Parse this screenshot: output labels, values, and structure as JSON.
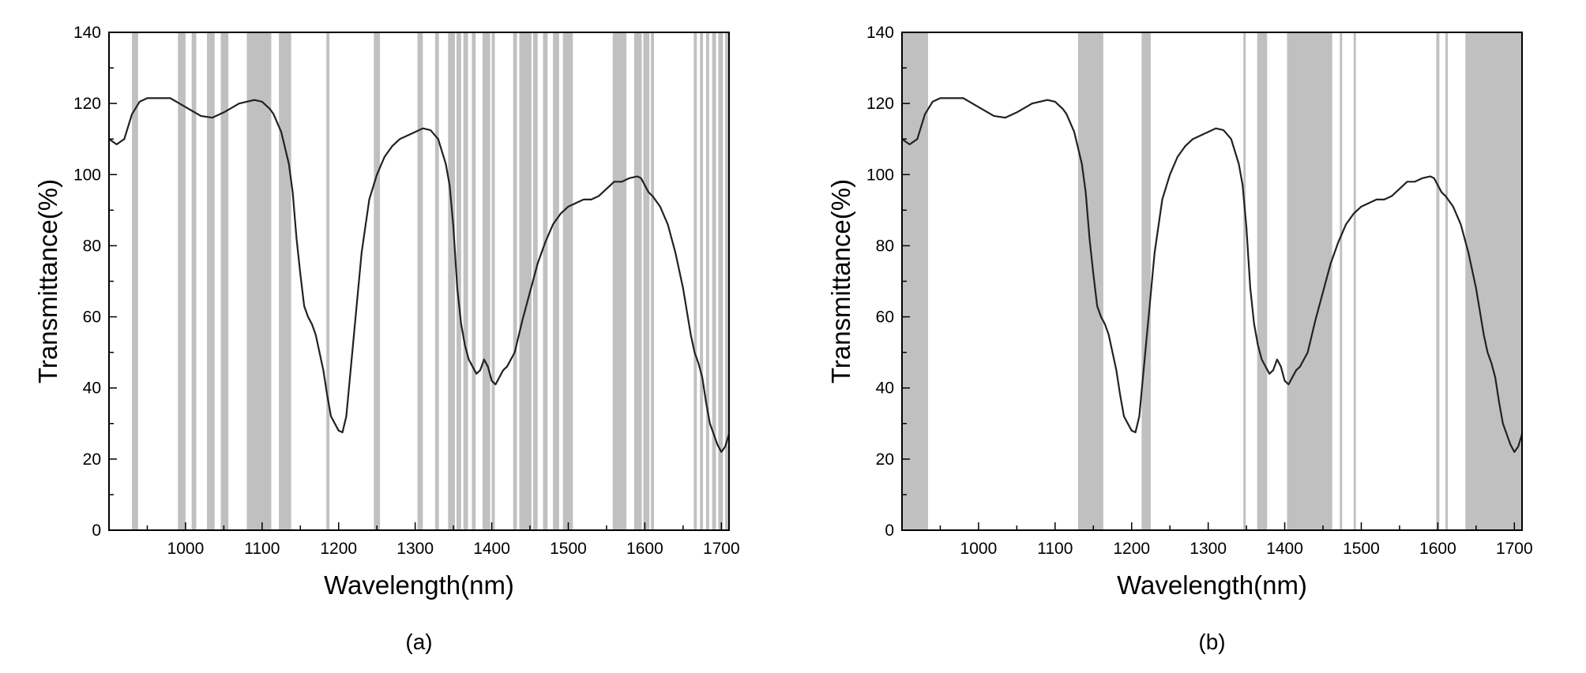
{
  "chart_data": [
    {
      "type": "line",
      "panel_label": "(a)",
      "xlabel": "Wavelength(nm)",
      "ylabel": "Transmittance(%)",
      "xlim": [
        900,
        1710
      ],
      "ylim": [
        0,
        140
      ],
      "xticks": [
        1000,
        1100,
        1200,
        1300,
        1400,
        1500,
        1600,
        1700
      ],
      "yticks": [
        0,
        20,
        40,
        60,
        80,
        100,
        120,
        140
      ],
      "grid": false,
      "band_color": "#c0c0c0",
      "line_color": "#222222",
      "series": [
        {
          "x": [
            900,
            910,
            920,
            930,
            940,
            950,
            960,
            980,
            1000,
            1020,
            1035,
            1050,
            1070,
            1090,
            1100,
            1110,
            1115,
            1125,
            1135,
            1140,
            1145,
            1150,
            1155,
            1160,
            1165,
            1170,
            1180,
            1185,
            1190,
            1200,
            1205,
            1210,
            1220,
            1230,
            1240,
            1250,
            1260,
            1270,
            1280,
            1290,
            1300,
            1310,
            1320,
            1330,
            1340,
            1345,
            1350,
            1355,
            1360,
            1365,
            1370,
            1375,
            1380,
            1385,
            1390,
            1395,
            1400,
            1405,
            1410,
            1415,
            1420,
            1425,
            1430,
            1440,
            1450,
            1460,
            1470,
            1480,
            1490,
            1500,
            1510,
            1520,
            1530,
            1540,
            1550,
            1560,
            1570,
            1580,
            1590,
            1595,
            1600,
            1605,
            1610,
            1620,
            1630,
            1640,
            1650,
            1660,
            1665,
            1670,
            1675,
            1680,
            1685,
            1690,
            1695,
            1700,
            1705,
            1710
          ],
          "values": [
            110,
            108.5,
            110,
            117,
            120.5,
            121.5,
            121.5,
            121.5,
            119,
            116.5,
            116,
            117.5,
            120,
            121,
            120.5,
            118.5,
            117,
            112,
            103,
            95,
            82,
            72,
            63,
            60,
            58,
            55,
            45,
            38,
            32,
            28,
            27.5,
            32,
            55,
            78,
            93,
            100,
            105,
            108,
            110,
            111,
            112,
            113,
            112.5,
            110,
            103,
            97,
            85,
            68,
            58,
            52,
            48,
            46,
            44,
            45,
            48,
            46,
            42,
            41,
            43,
            45,
            46,
            48,
            50,
            59,
            67,
            75,
            81,
            86,
            89,
            91,
            92,
            93,
            93,
            94,
            96,
            98,
            98,
            99,
            99.5,
            99,
            97,
            95,
            94,
            91,
            86,
            78,
            68,
            55,
            50,
            47,
            43,
            36,
            30,
            27,
            24,
            22,
            23.5,
            27
          ]
        }
      ],
      "bands": [
        [
          930,
          938
        ],
        [
          990,
          1000
        ],
        [
          1008,
          1014
        ],
        [
          1028,
          1038
        ],
        [
          1046,
          1056
        ],
        [
          1080,
          1112
        ],
        [
          1122,
          1138
        ],
        [
          1184,
          1188
        ],
        [
          1246,
          1254
        ],
        [
          1303,
          1310
        ],
        [
          1326,
          1331
        ],
        [
          1343,
          1352
        ],
        [
          1354,
          1360
        ],
        [
          1363,
          1369
        ],
        [
          1374,
          1379
        ],
        [
          1388,
          1398
        ],
        [
          1400,
          1404
        ],
        [
          1428,
          1433
        ],
        [
          1436,
          1452
        ],
        [
          1454,
          1460
        ],
        [
          1467,
          1473
        ],
        [
          1480,
          1488
        ],
        [
          1493,
          1506
        ],
        [
          1558,
          1576
        ],
        [
          1586,
          1596
        ],
        [
          1598,
          1606
        ],
        [
          1608,
          1612
        ],
        [
          1664,
          1668
        ],
        [
          1672,
          1676
        ],
        [
          1680,
          1684
        ],
        [
          1688,
          1693
        ],
        [
          1696,
          1702
        ],
        [
          1705,
          1709
        ]
      ]
    },
    {
      "type": "line",
      "panel_label": "(b)",
      "xlabel": "Wavelength(nm)",
      "ylabel": "Transmittance(%)",
      "xlim": [
        900,
        1710
      ],
      "ylim": [
        0,
        140
      ],
      "xticks": [
        1000,
        1100,
        1200,
        1300,
        1400,
        1500,
        1600,
        1700
      ],
      "yticks": [
        0,
        20,
        40,
        60,
        80,
        100,
        120,
        140
      ],
      "grid": false,
      "band_color": "#c0c0c0",
      "line_color": "#222222",
      "series": [
        {
          "x": [
            900,
            910,
            920,
            930,
            940,
            950,
            960,
            980,
            1000,
            1020,
            1035,
            1050,
            1070,
            1090,
            1100,
            1110,
            1115,
            1125,
            1135,
            1140,
            1145,
            1150,
            1155,
            1160,
            1165,
            1170,
            1180,
            1185,
            1190,
            1200,
            1205,
            1210,
            1220,
            1230,
            1240,
            1250,
            1260,
            1270,
            1280,
            1290,
            1300,
            1310,
            1320,
            1330,
            1340,
            1345,
            1350,
            1355,
            1360,
            1365,
            1370,
            1375,
            1380,
            1385,
            1390,
            1395,
            1400,
            1405,
            1410,
            1415,
            1420,
            1425,
            1430,
            1440,
            1450,
            1460,
            1470,
            1480,
            1490,
            1500,
            1510,
            1520,
            1530,
            1540,
            1550,
            1560,
            1570,
            1580,
            1590,
            1595,
            1600,
            1605,
            1610,
            1620,
            1630,
            1640,
            1650,
            1660,
            1665,
            1670,
            1675,
            1680,
            1685,
            1690,
            1695,
            1700,
            1705,
            1710
          ],
          "values": [
            110,
            108.5,
            110,
            117,
            120.5,
            121.5,
            121.5,
            121.5,
            119,
            116.5,
            116,
            117.5,
            120,
            121,
            120.5,
            118.5,
            117,
            112,
            103,
            95,
            82,
            72,
            63,
            60,
            58,
            55,
            45,
            38,
            32,
            28,
            27.5,
            32,
            55,
            78,
            93,
            100,
            105,
            108,
            110,
            111,
            112,
            113,
            112.5,
            110,
            103,
            97,
            85,
            68,
            58,
            52,
            48,
            46,
            44,
            45,
            48,
            46,
            42,
            41,
            43,
            45,
            46,
            48,
            50,
            59,
            67,
            75,
            81,
            86,
            89,
            91,
            92,
            93,
            93,
            94,
            96,
            98,
            98,
            99,
            99.5,
            99,
            97,
            95,
            94,
            91,
            86,
            78,
            68,
            55,
            50,
            47,
            43,
            36,
            30,
            27,
            24,
            22,
            23.5,
            27
          ]
        }
      ],
      "bands": [
        [
          900,
          934
        ],
        [
          1130,
          1163
        ],
        [
          1213,
          1225
        ],
        [
          1346,
          1349
        ],
        [
          1364,
          1377
        ],
        [
          1403,
          1462
        ],
        [
          1472,
          1475
        ],
        [
          1490,
          1493
        ],
        [
          1598,
          1602
        ],
        [
          1610,
          1613
        ],
        [
          1636,
          1710
        ]
      ]
    }
  ]
}
